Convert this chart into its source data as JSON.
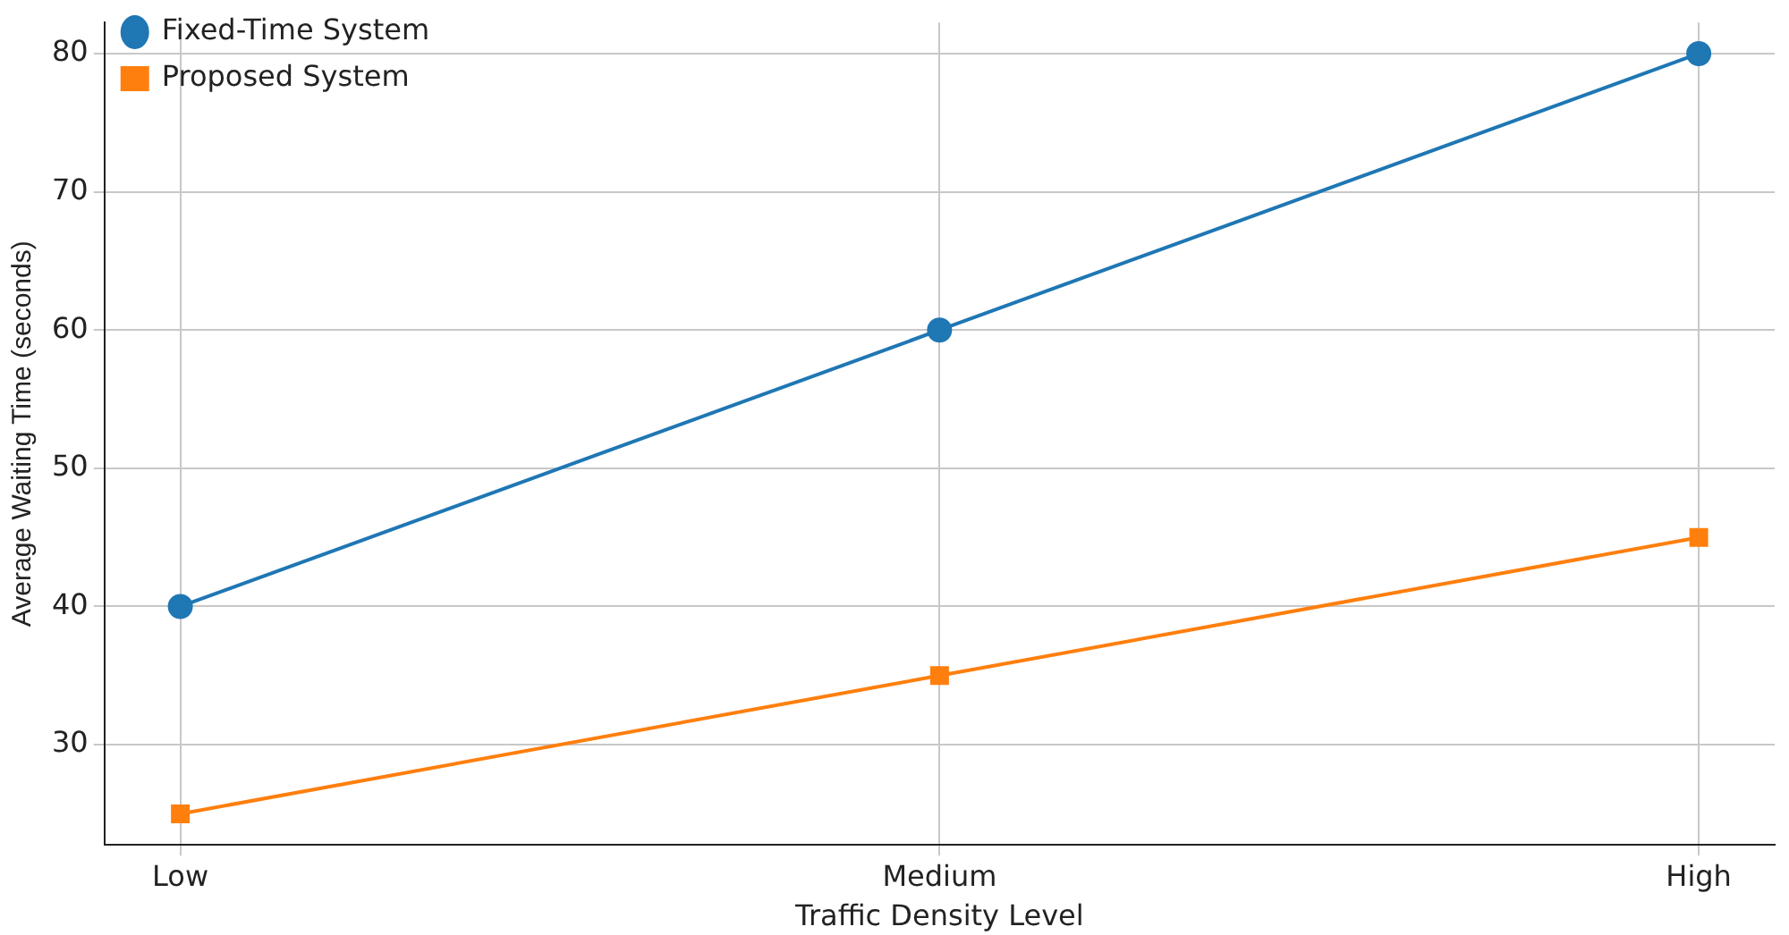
{
  "chart_data": {
    "type": "line",
    "xlabel": "Traffic Density Level",
    "ylabel": "Average Waiting Time (seconds)",
    "categories": [
      "Low",
      "Medium",
      "High"
    ],
    "series": [
      {
        "name": "Fixed-Time System",
        "color": "#1f77b4",
        "marker": "circle",
        "values": [
          40,
          60,
          80
        ]
      },
      {
        "name": "Proposed System",
        "color": "#ff7f0e",
        "marker": "square",
        "values": [
          25,
          35,
          45
        ]
      }
    ],
    "ylim": [
      22.75,
      82.25
    ],
    "yticks": [
      30,
      40,
      50,
      60,
      70,
      80
    ],
    "grid": true,
    "legend": "top left",
    "line_style": "solid"
  }
}
